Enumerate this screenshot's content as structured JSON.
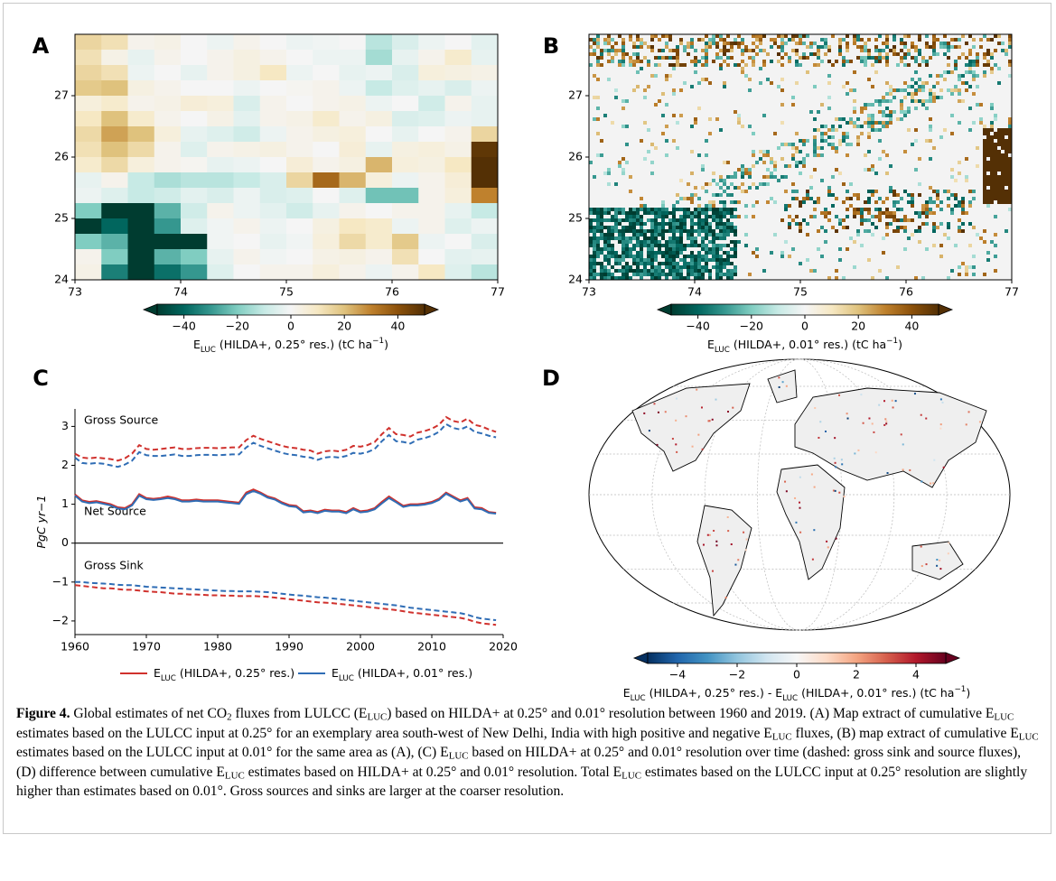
{
  "figure": {
    "panel_labels": [
      "A",
      "B",
      "C",
      "D"
    ]
  },
  "chart_data": [
    {
      "type": "heatmap",
      "xlim": [
        73,
        77
      ],
      "ylim": [
        24,
        28
      ],
      "xticks": [
        73,
        74,
        75,
        76,
        77
      ],
      "yticks": [
        24,
        25,
        26,
        27
      ],
      "values": [
        [
          15,
          12,
          2,
          3,
          0,
          -2,
          2,
          0,
          -2,
          -1,
          0,
          -12,
          -6,
          -2,
          0,
          -4
        ],
        [
          12,
          3,
          -3,
          2,
          0,
          2,
          4,
          2,
          0,
          -2,
          -2,
          -15,
          -3,
          2,
          8,
          -3
        ],
        [
          15,
          12,
          -2,
          0,
          -3,
          2,
          4,
          10,
          -2,
          0,
          -3,
          -2,
          -6,
          5,
          4,
          3
        ],
        [
          18,
          20,
          4,
          2,
          0,
          0,
          -2,
          0,
          1,
          2,
          -2,
          -10,
          -5,
          -3,
          -6,
          -2
        ],
        [
          5,
          8,
          2,
          3,
          6,
          5,
          -6,
          2,
          0,
          2,
          3,
          -2,
          0,
          -8,
          2,
          -3
        ],
        [
          10,
          20,
          8,
          2,
          0,
          3,
          -4,
          2,
          3,
          8,
          2,
          4,
          -6,
          -5,
          -2,
          -3
        ],
        [
          14,
          25,
          20,
          5,
          -3,
          -5,
          -8,
          -2,
          2,
          4,
          5,
          0,
          -3,
          0,
          2,
          15
        ],
        [
          12,
          20,
          14,
          2,
          -5,
          2,
          3,
          4,
          2,
          0,
          6,
          -3,
          4,
          5,
          3,
          48
        ],
        [
          8,
          14,
          5,
          2,
          1,
          -3,
          -2,
          0,
          6,
          2,
          4,
          22,
          5,
          4,
          10,
          50
        ],
        [
          -3,
          2,
          -10,
          -14,
          -12,
          -12,
          -10,
          -6,
          15,
          35,
          22,
          5,
          -2,
          2,
          6,
          50
        ],
        [
          -2,
          -5,
          -10,
          -8,
          -4,
          -6,
          -2,
          -6,
          -5,
          0,
          -5,
          -22,
          -22,
          2,
          5,
          30
        ],
        [
          -20,
          -50,
          -50,
          -25,
          -8,
          2,
          -2,
          -4,
          -8,
          -3,
          2,
          0,
          2,
          2,
          -3,
          -10
        ],
        [
          -50,
          -40,
          -50,
          -30,
          -5,
          -1,
          2,
          -2,
          0,
          4,
          10,
          8,
          -2,
          2,
          -5,
          -2
        ],
        [
          -20,
          -25,
          -50,
          -50,
          -50,
          -1,
          0,
          -3,
          -1,
          5,
          14,
          8,
          18,
          -2,
          0,
          -6
        ],
        [
          2,
          -20,
          -50,
          -25,
          -20,
          -3,
          2,
          -1,
          0,
          3,
          4,
          2,
          12,
          0,
          -4,
          -3
        ],
        [
          3,
          -35,
          -50,
          -38,
          -30,
          -5,
          0,
          2,
          2,
          5,
          2,
          -2,
          2,
          10,
          -5,
          -12
        ]
      ],
      "colorbar": {
        "label": "ELUC (HILDA+, 0.25° res.) (tC ha−1)",
        "lim": [
          -50,
          50
        ],
        "ticks": [
          {
            "value": -40,
            "label": "−40"
          },
          {
            "value": -20,
            "label": "−20"
          },
          0,
          20,
          40
        ],
        "colors": [
          "#003c30",
          "#01665e",
          "#35978f",
          "#80cdc1",
          "#c7eae5",
          "#f5f5f5",
          "#f6e8c3",
          "#dfc27d",
          "#bf812d",
          "#8c510a",
          "#543005"
        ]
      }
    },
    {
      "type": "map",
      "xlim": [
        73,
        77
      ],
      "ylim": [
        24,
        28
      ],
      "xticks": [
        73,
        74,
        75,
        76,
        77
      ],
      "yticks": [
        24,
        25,
        26,
        27
      ],
      "colorbar": {
        "label": "ELUC (HILDA+, 0.01° res.) (tC ha−1)",
        "lim": [
          -50,
          50
        ],
        "ticks": [
          {
            "value": -40,
            "label": "−40"
          },
          {
            "value": -20,
            "label": "−20"
          },
          0,
          20,
          40
        ],
        "colors": [
          "#003c30",
          "#01665e",
          "#35978f",
          "#80cdc1",
          "#c7eae5",
          "#f5f5f5",
          "#f6e8c3",
          "#dfc27d",
          "#bf812d",
          "#8c510a",
          "#543005"
        ]
      }
    },
    {
      "type": "line",
      "ylabel": "PgC yr−1",
      "x": [
        1960,
        1961,
        1962,
        1963,
        1964,
        1965,
        1966,
        1967,
        1968,
        1969,
        1970,
        1971,
        1972,
        1973,
        1974,
        1975,
        1976,
        1977,
        1978,
        1979,
        1980,
        1981,
        1982,
        1983,
        1984,
        1985,
        1986,
        1987,
        1988,
        1989,
        1990,
        1991,
        1992,
        1993,
        1994,
        1995,
        1996,
        1997,
        1998,
        1999,
        2000,
        2001,
        2002,
        2003,
        2004,
        2005,
        2006,
        2007,
        2008,
        2009,
        2010,
        2011,
        2012,
        2013,
        2014,
        2015,
        2016,
        2017,
        2018,
        2019
      ],
      "xlim": [
        1960,
        2020
      ],
      "ylim": [
        -2.35,
        3.45
      ],
      "xticks": [
        1960,
        1970,
        1980,
        1990,
        2000,
        2010,
        2020
      ],
      "yticks": [
        {
          "value": -2,
          "label": "−2"
        },
        {
          "value": -1,
          "label": "−1"
        },
        0,
        1,
        2,
        3
      ],
      "zero_line": true,
      "annotations": [
        "Gross Source",
        "Net Source",
        "Gross Sink"
      ],
      "series": [
        {
          "name": "ELUC (HILDA+, 0.25° res.)",
          "color": "#d0312d",
          "gross_source": [
            2.3,
            2.2,
            2.18,
            2.2,
            2.18,
            2.16,
            2.12,
            2.18,
            2.3,
            2.52,
            2.42,
            2.4,
            2.42,
            2.44,
            2.46,
            2.42,
            2.42,
            2.44,
            2.45,
            2.45,
            2.44,
            2.45,
            2.46,
            2.46,
            2.65,
            2.76,
            2.68,
            2.62,
            2.56,
            2.5,
            2.46,
            2.44,
            2.4,
            2.38,
            2.3,
            2.36,
            2.38,
            2.36,
            2.4,
            2.5,
            2.48,
            2.52,
            2.6,
            2.8,
            2.96,
            2.8,
            2.78,
            2.74,
            2.84,
            2.88,
            2.94,
            3.04,
            3.24,
            3.14,
            3.1,
            3.2,
            3.04,
            3.0,
            2.92,
            2.86
          ],
          "net_source": [
            1.25,
            1.1,
            1.06,
            1.08,
            1.04,
            1.0,
            0.92,
            0.9,
            1.0,
            1.26,
            1.16,
            1.14,
            1.16,
            1.2,
            1.16,
            1.1,
            1.1,
            1.12,
            1.1,
            1.1,
            1.1,
            1.08,
            1.06,
            1.04,
            1.3,
            1.38,
            1.3,
            1.2,
            1.15,
            1.05,
            0.98,
            0.96,
            0.82,
            0.84,
            0.8,
            0.86,
            0.84,
            0.84,
            0.8,
            0.9,
            0.82,
            0.84,
            0.9,
            1.06,
            1.2,
            1.08,
            0.96,
            1.0,
            1.0,
            1.02,
            1.06,
            1.14,
            1.3,
            1.2,
            1.1,
            1.16,
            0.92,
            0.9,
            0.8,
            0.78
          ],
          "gross_sink": [
            -1.08,
            -1.1,
            -1.12,
            -1.14,
            -1.16,
            -1.16,
            -1.18,
            -1.2,
            -1.2,
            -1.22,
            -1.24,
            -1.25,
            -1.26,
            -1.28,
            -1.3,
            -1.3,
            -1.32,
            -1.32,
            -1.33,
            -1.34,
            -1.34,
            -1.35,
            -1.35,
            -1.36,
            -1.36,
            -1.36,
            -1.37,
            -1.38,
            -1.4,
            -1.42,
            -1.44,
            -1.46,
            -1.48,
            -1.5,
            -1.52,
            -1.53,
            -1.54,
            -1.56,
            -1.58,
            -1.6,
            -1.62,
            -1.64,
            -1.66,
            -1.68,
            -1.7,
            -1.72,
            -1.75,
            -1.78,
            -1.8,
            -1.82,
            -1.84,
            -1.86,
            -1.88,
            -1.9,
            -1.92,
            -1.96,
            -2.02,
            -2.06,
            -2.08,
            -2.1
          ]
        },
        {
          "name": "ELUC (HILDA+, 0.01° res.)",
          "color": "#2f6db5",
          "gross_source": [
            2.2,
            2.06,
            2.04,
            2.06,
            2.04,
            2.0,
            1.96,
            2.02,
            2.12,
            2.34,
            2.26,
            2.24,
            2.24,
            2.26,
            2.28,
            2.24,
            2.24,
            2.26,
            2.27,
            2.27,
            2.26,
            2.27,
            2.28,
            2.28,
            2.46,
            2.58,
            2.5,
            2.44,
            2.38,
            2.32,
            2.28,
            2.26,
            2.22,
            2.2,
            2.14,
            2.2,
            2.22,
            2.2,
            2.24,
            2.32,
            2.3,
            2.34,
            2.42,
            2.62,
            2.78,
            2.62,
            2.6,
            2.56,
            2.66,
            2.7,
            2.76,
            2.86,
            3.06,
            2.96,
            2.92,
            3.0,
            2.86,
            2.82,
            2.76,
            2.72
          ],
          "net_source": [
            1.22,
            1.07,
            1.03,
            1.05,
            1.01,
            0.97,
            0.89,
            0.87,
            0.97,
            1.22,
            1.13,
            1.11,
            1.13,
            1.16,
            1.13,
            1.07,
            1.07,
            1.09,
            1.07,
            1.07,
            1.07,
            1.05,
            1.03,
            1.01,
            1.26,
            1.34,
            1.27,
            1.17,
            1.12,
            1.02,
            0.95,
            0.93,
            0.79,
            0.81,
            0.77,
            0.83,
            0.81,
            0.81,
            0.77,
            0.87,
            0.79,
            0.81,
            0.87,
            1.02,
            1.16,
            1.05,
            0.93,
            0.97,
            0.97,
            0.99,
            1.03,
            1.11,
            1.27,
            1.17,
            1.07,
            1.13,
            0.89,
            0.87,
            0.78,
            0.76
          ],
          "gross_sink": [
            -1.0,
            -1.0,
            -1.02,
            -1.03,
            -1.04,
            -1.05,
            -1.07,
            -1.08,
            -1.08,
            -1.1,
            -1.12,
            -1.13,
            -1.14,
            -1.15,
            -1.16,
            -1.17,
            -1.18,
            -1.19,
            -1.2,
            -1.21,
            -1.22,
            -1.23,
            -1.23,
            -1.24,
            -1.24,
            -1.24,
            -1.25,
            -1.26,
            -1.28,
            -1.3,
            -1.32,
            -1.34,
            -1.35,
            -1.37,
            -1.39,
            -1.4,
            -1.42,
            -1.44,
            -1.46,
            -1.48,
            -1.5,
            -1.52,
            -1.54,
            -1.56,
            -1.58,
            -1.6,
            -1.63,
            -1.66,
            -1.68,
            -1.7,
            -1.72,
            -1.74,
            -1.76,
            -1.78,
            -1.8,
            -1.84,
            -1.9,
            -1.94,
            -1.96,
            -1.98
          ]
        }
      ]
    },
    {
      "type": "map",
      "colorbar": {
        "label": "ELUC (HILDA+, 0.25° res.) - ELUC (HILDA+, 0.01° res.) (tC ha−1)",
        "lim": [
          -5,
          5
        ],
        "ticks": [
          {
            "value": -4,
            "label": "−4"
          },
          {
            "value": -2,
            "label": "−2"
          },
          0,
          2,
          4
        ],
        "colors": [
          "#053061",
          "#2166ac",
          "#4393c3",
          "#92c5de",
          "#d1e5f0",
          "#f7f7f7",
          "#fddbc7",
          "#f4a582",
          "#d6604d",
          "#b2182b",
          "#67001f"
        ]
      }
    }
  ],
  "caption": {
    "label": "Figure 4.",
    "text": "Global estimates of net CO2 fluxes from LULCC (ELUC) based on HILDA+ at 0.25° and 0.01° resolution between 1960 and 2019. (A) Map extract of cumulative ELUC estimates based on the LULCC input at 0.25° for an exemplary area south-west of New Delhi, India with high positive and negative ELUC fluxes, (B) map extract of cumulative ELUC estimates based on the LULCC input at 0.01° for the same area as (A), (C) ELUC based on HILDA+ at 0.25° and 0.01° resolution over time (dashed: gross sink and source fluxes), (D) difference between cumulative ELUC estimates based on HILDA+ at 0.25° and 0.01° resolution. Total ELUC estimates based on the LULCC input at 0.25° resolution are slightly higher than estimates based on 0.01°. Gross sources and sinks are larger at the coarser resolution."
  }
}
